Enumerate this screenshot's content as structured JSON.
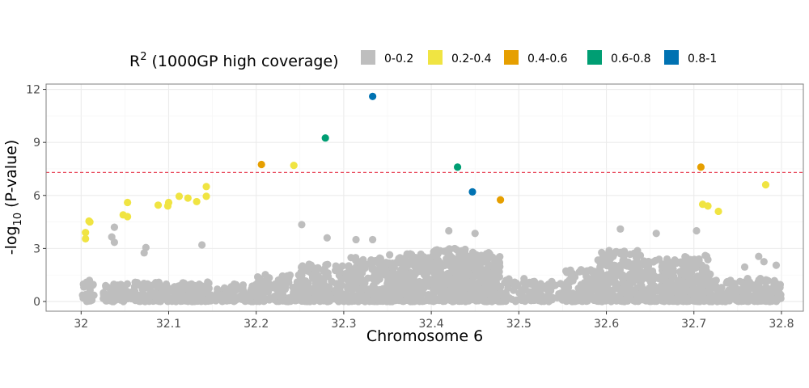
{
  "chart_data": {
    "type": "scatter",
    "xlabel": "Chromosome 6",
    "ylabel": {
      "prefix": "-log",
      "sub": "10",
      "suffix": " (P-value)"
    },
    "xlim": [
      31.96,
      32.825
    ],
    "ylim": [
      -0.55,
      12.3
    ],
    "xticks": [
      32.0,
      32.1,
      32.2,
      32.3,
      32.4,
      32.5,
      32.6,
      32.7,
      32.8
    ],
    "xtick_labels": [
      "32",
      "32.1",
      "32.2",
      "32.3",
      "32.4",
      "32.5",
      "32.6",
      "32.7",
      "32.8"
    ],
    "yticks": [
      0,
      3,
      6,
      9,
      12
    ],
    "ytick_labels": [
      "0",
      "3",
      "6",
      "9",
      "12"
    ],
    "grid": true,
    "threshold": {
      "y": 7.3,
      "color": "#e8485a",
      "style": "dashed"
    },
    "legend": {
      "position": "top",
      "title": {
        "main": "R",
        "sup": "2",
        "rest": " (1000GP high coverage)"
      },
      "entries": [
        {
          "label": "0-0.2",
          "color": "#bebebe"
        },
        {
          "label": "0.2-0.4",
          "color": "#f0e442"
        },
        {
          "label": "0.4-0.6",
          "color": "#e69f00"
        },
        {
          "label": "0.6-0.8",
          "color": "#009e73"
        },
        {
          "label": "0.8-1",
          "color": "#0072b2"
        }
      ]
    },
    "series": [
      {
        "name": "0.2-0.4",
        "points": [
          [
            32.005,
            3.9
          ],
          [
            32.005,
            3.55
          ],
          [
            32.009,
            4.55
          ],
          [
            32.01,
            4.5
          ],
          [
            32.048,
            4.9
          ],
          [
            32.053,
            4.8
          ],
          [
            32.053,
            5.6
          ],
          [
            32.088,
            5.45
          ],
          [
            32.099,
            5.4
          ],
          [
            32.1,
            5.6
          ],
          [
            32.112,
            5.95
          ],
          [
            32.122,
            5.85
          ],
          [
            32.132,
            5.65
          ],
          [
            32.143,
            6.5
          ],
          [
            32.143,
            5.95
          ],
          [
            32.243,
            7.7
          ],
          [
            32.71,
            5.5
          ],
          [
            32.716,
            5.4
          ],
          [
            32.728,
            5.1
          ],
          [
            32.782,
            6.6
          ]
        ]
      },
      {
        "name": "0.4-0.6",
        "points": [
          [
            32.206,
            7.75
          ],
          [
            32.479,
            5.75
          ],
          [
            32.708,
            7.6
          ]
        ]
      },
      {
        "name": "0.6-0.8",
        "points": [
          [
            32.279,
            9.25
          ],
          [
            32.43,
            7.6
          ]
        ]
      },
      {
        "name": "0.8-1",
        "points": [
          [
            32.333,
            11.6
          ],
          [
            32.447,
            6.2
          ]
        ]
      }
    ],
    "background_series": {
      "name": "0-0.2",
      "approx_count": 3000,
      "x_range": [
        32.0,
        32.8
      ],
      "y_range": [
        0,
        4.4
      ],
      "labeled_outliers": [
        [
          32.038,
          4.2
        ],
        [
          32.035,
          3.65
        ],
        [
          32.038,
          3.35
        ],
        [
          32.074,
          3.05
        ],
        [
          32.072,
          2.75
        ],
        [
          32.138,
          3.2
        ],
        [
          32.252,
          4.35
        ],
        [
          32.281,
          3.6
        ],
        [
          32.314,
          3.5
        ],
        [
          32.333,
          3.5
        ],
        [
          32.42,
          4.0
        ],
        [
          32.45,
          3.85
        ],
        [
          32.657,
          3.85
        ],
        [
          32.616,
          4.1
        ],
        [
          32.703,
          4.0
        ],
        [
          32.713,
          2.6
        ],
        [
          32.774,
          2.55
        ],
        [
          32.758,
          1.95
        ],
        [
          32.78,
          2.25
        ],
        [
          32.794,
          2.05
        ]
      ]
    }
  }
}
